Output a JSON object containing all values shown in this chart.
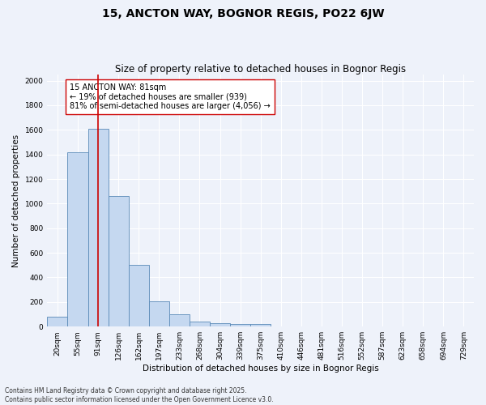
{
  "title": "15, ANCTON WAY, BOGNOR REGIS, PO22 6JW",
  "subtitle": "Size of property relative to detached houses in Bognor Regis",
  "xlabel": "Distribution of detached houses by size in Bognor Regis",
  "ylabel": "Number of detached properties",
  "bin_labels": [
    "20sqm",
    "55sqm",
    "91sqm",
    "126sqm",
    "162sqm",
    "197sqm",
    "233sqm",
    "268sqm",
    "304sqm",
    "339sqm",
    "375sqm",
    "410sqm",
    "446sqm",
    "481sqm",
    "516sqm",
    "552sqm",
    "587sqm",
    "623sqm",
    "658sqm",
    "694sqm",
    "729sqm"
  ],
  "bar_values": [
    80,
    1420,
    1610,
    1060,
    500,
    205,
    100,
    40,
    30,
    20,
    20,
    0,
    0,
    0,
    0,
    0,
    0,
    0,
    0,
    0,
    0
  ],
  "bar_color": "#c5d8f0",
  "bar_edge_color": "#5a8ab8",
  "vline_x": 2,
  "vline_color": "#cc0000",
  "annotation_text": "15 ANCTON WAY: 81sqm\n← 19% of detached houses are smaller (939)\n81% of semi-detached houses are larger (4,056) →",
  "annotation_box_color": "#ffffff",
  "annotation_box_edge_color": "#cc0000",
  "ylim": [
    0,
    2050
  ],
  "yticks": [
    0,
    200,
    400,
    600,
    800,
    1000,
    1200,
    1400,
    1600,
    1800,
    2000
  ],
  "footer_text": "Contains HM Land Registry data © Crown copyright and database right 2025.\nContains public sector information licensed under the Open Government Licence v3.0.",
  "background_color": "#eef2fa",
  "grid_color": "#ffffff",
  "title_fontsize": 10,
  "subtitle_fontsize": 8.5,
  "axis_label_fontsize": 7.5,
  "tick_fontsize": 6.5,
  "annotation_fontsize": 7,
  "footer_fontsize": 5.5
}
